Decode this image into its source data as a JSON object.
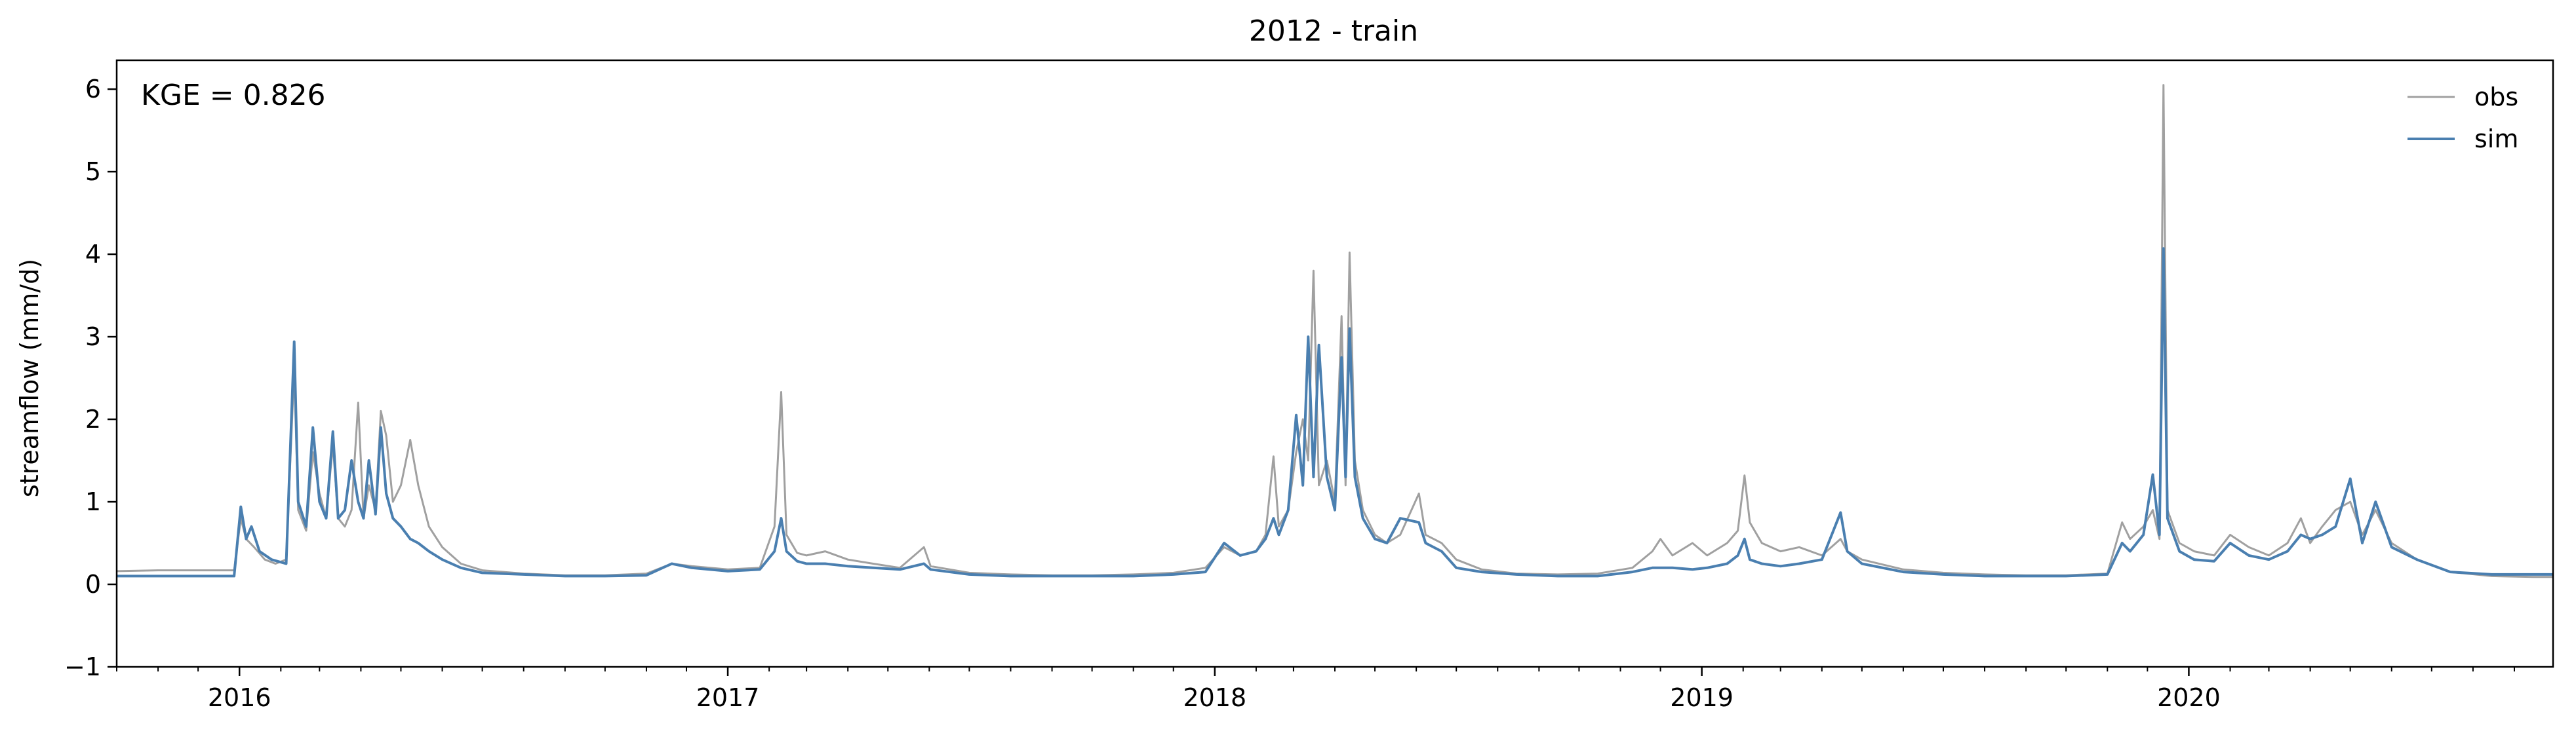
{
  "chart_data": {
    "type": "line",
    "title": "2012 - train",
    "xlabel": "",
    "ylabel": "streamflow (mm/d)",
    "annotation": "KGE = 0.826",
    "x_range": [
      "2015-10-01",
      "2020-09-30"
    ],
    "ylim": [
      -1,
      6.35
    ],
    "y_ticks": [
      -1,
      0,
      1,
      2,
      3,
      4,
      5,
      6
    ],
    "x_ticks": [
      "2016",
      "2017",
      "2018",
      "2019",
      "2020"
    ],
    "grid": false,
    "legend_position": "top-right",
    "series": [
      {
        "name": "obs",
        "color": "#a0a0a0",
        "points": [
          [
            "2015-10-01",
            0.16
          ],
          [
            "2015-11-01",
            0.17
          ],
          [
            "2015-12-01",
            0.17
          ],
          [
            "2015-12-28",
            0.17
          ],
          [
            "2016-01-02",
            0.8
          ],
          [
            "2016-01-06",
            0.55
          ],
          [
            "2016-01-12",
            0.45
          ],
          [
            "2016-01-20",
            0.3
          ],
          [
            "2016-01-28",
            0.25
          ],
          [
            "2016-02-05",
            0.3
          ],
          [
            "2016-02-11",
            2.6
          ],
          [
            "2016-02-14",
            0.9
          ],
          [
            "2016-02-20",
            0.65
          ],
          [
            "2016-02-25",
            1.6
          ],
          [
            "2016-03-01",
            1.1
          ],
          [
            "2016-03-06",
            0.8
          ],
          [
            "2016-03-11",
            1.7
          ],
          [
            "2016-03-15",
            0.8
          ],
          [
            "2016-03-20",
            0.7
          ],
          [
            "2016-03-25",
            0.9
          ],
          [
            "2016-03-30",
            2.2
          ],
          [
            "2016-04-03",
            0.8
          ],
          [
            "2016-04-07",
            1.2
          ],
          [
            "2016-04-12",
            0.9
          ],
          [
            "2016-04-16",
            2.1
          ],
          [
            "2016-04-20",
            1.8
          ],
          [
            "2016-04-25",
            1.0
          ],
          [
            "2016-05-01",
            1.2
          ],
          [
            "2016-05-08",
            1.75
          ],
          [
            "2016-05-14",
            1.2
          ],
          [
            "2016-05-22",
            0.7
          ],
          [
            "2016-06-01",
            0.45
          ],
          [
            "2016-06-15",
            0.25
          ],
          [
            "2016-07-01",
            0.17
          ],
          [
            "2016-08-01",
            0.13
          ],
          [
            "2016-09-01",
            0.11
          ],
          [
            "2016-10-01",
            0.11
          ],
          [
            "2016-11-01",
            0.13
          ],
          [
            "2016-11-20",
            0.25
          ],
          [
            "2016-12-05",
            0.22
          ],
          [
            "2017-01-01",
            0.18
          ],
          [
            "2017-01-25",
            0.2
          ],
          [
            "2017-02-05",
            0.7
          ],
          [
            "2017-02-10",
            2.33
          ],
          [
            "2017-02-14",
            0.6
          ],
          [
            "2017-02-22",
            0.38
          ],
          [
            "2017-03-01",
            0.35
          ],
          [
            "2017-03-15",
            0.4
          ],
          [
            "2017-04-01",
            0.3
          ],
          [
            "2017-04-20",
            0.25
          ],
          [
            "2017-05-10",
            0.2
          ],
          [
            "2017-05-28",
            0.45
          ],
          [
            "2017-06-02",
            0.22
          ],
          [
            "2017-07-01",
            0.14
          ],
          [
            "2017-08-01",
            0.12
          ],
          [
            "2017-09-01",
            0.11
          ],
          [
            "2017-10-01",
            0.11
          ],
          [
            "2017-11-01",
            0.12
          ],
          [
            "2017-12-01",
            0.14
          ],
          [
            "2017-12-25",
            0.2
          ],
          [
            "2018-01-08",
            0.45
          ],
          [
            "2018-01-20",
            0.35
          ],
          [
            "2018-02-01",
            0.4
          ],
          [
            "2018-02-08",
            0.6
          ],
          [
            "2018-02-14",
            1.55
          ],
          [
            "2018-02-18",
            0.7
          ],
          [
            "2018-02-25",
            0.9
          ],
          [
            "2018-03-03",
            1.6
          ],
          [
            "2018-03-08",
            2.0
          ],
          [
            "2018-03-12",
            1.5
          ],
          [
            "2018-03-16",
            3.8
          ],
          [
            "2018-03-20",
            1.2
          ],
          [
            "2018-03-26",
            1.5
          ],
          [
            "2018-04-01",
            1.0
          ],
          [
            "2018-04-06",
            3.25
          ],
          [
            "2018-04-09",
            1.2
          ],
          [
            "2018-04-12",
            4.02
          ],
          [
            "2018-04-16",
            1.5
          ],
          [
            "2018-04-22",
            0.9
          ],
          [
            "2018-05-01",
            0.6
          ],
          [
            "2018-05-10",
            0.5
          ],
          [
            "2018-05-20",
            0.6
          ],
          [
            "2018-06-03",
            1.1
          ],
          [
            "2018-06-08",
            0.6
          ],
          [
            "2018-06-20",
            0.5
          ],
          [
            "2018-07-01",
            0.3
          ],
          [
            "2018-07-20",
            0.18
          ],
          [
            "2018-08-15",
            0.13
          ],
          [
            "2018-09-15",
            0.12
          ],
          [
            "2018-10-15",
            0.13
          ],
          [
            "2018-11-10",
            0.2
          ],
          [
            "2018-11-25",
            0.4
          ],
          [
            "2018-12-01",
            0.55
          ],
          [
            "2018-12-10",
            0.35
          ],
          [
            "2018-12-25",
            0.5
          ],
          [
            "2019-01-05",
            0.35
          ],
          [
            "2019-01-20",
            0.5
          ],
          [
            "2019-01-28",
            0.65
          ],
          [
            "2019-02-02",
            1.32
          ],
          [
            "2019-02-06",
            0.75
          ],
          [
            "2019-02-15",
            0.5
          ],
          [
            "2019-03-01",
            0.4
          ],
          [
            "2019-03-15",
            0.45
          ],
          [
            "2019-04-01",
            0.35
          ],
          [
            "2019-04-15",
            0.55
          ],
          [
            "2019-04-20",
            0.4
          ],
          [
            "2019-05-01",
            0.3
          ],
          [
            "2019-06-01",
            0.18
          ],
          [
            "2019-07-01",
            0.14
          ],
          [
            "2019-08-01",
            0.12
          ],
          [
            "2019-09-01",
            0.11
          ],
          [
            "2019-10-01",
            0.11
          ],
          [
            "2019-11-01",
            0.13
          ],
          [
            "2019-11-12",
            0.75
          ],
          [
            "2019-11-18",
            0.55
          ],
          [
            "2019-11-28",
            0.7
          ],
          [
            "2019-12-05",
            0.9
          ],
          [
            "2019-12-10",
            0.55
          ],
          [
            "2019-12-13",
            6.05
          ],
          [
            "2019-12-16",
            0.9
          ],
          [
            "2019-12-25",
            0.5
          ],
          [
            "2020-01-05",
            0.4
          ],
          [
            "2020-01-20",
            0.35
          ],
          [
            "2020-02-01",
            0.6
          ],
          [
            "2020-02-15",
            0.45
          ],
          [
            "2020-03-01",
            0.35
          ],
          [
            "2020-03-15",
            0.5
          ],
          [
            "2020-03-25",
            0.8
          ],
          [
            "2020-04-01",
            0.5
          ],
          [
            "2020-04-10",
            0.7
          ],
          [
            "2020-04-20",
            0.9
          ],
          [
            "2020-05-01",
            1.0
          ],
          [
            "2020-05-10",
            0.6
          ],
          [
            "2020-05-20",
            0.9
          ],
          [
            "2020-06-01",
            0.5
          ],
          [
            "2020-06-20",
            0.3
          ],
          [
            "2020-07-15",
            0.15
          ],
          [
            "2020-08-15",
            0.1
          ],
          [
            "2020-09-15",
            0.09
          ],
          [
            "2020-09-30",
            0.09
          ]
        ]
      },
      {
        "name": "sim",
        "color": "#4a7fb0",
        "points": [
          [
            "2015-10-01",
            0.1
          ],
          [
            "2015-11-01",
            0.1
          ],
          [
            "2015-12-01",
            0.1
          ],
          [
            "2015-12-28",
            0.1
          ],
          [
            "2016-01-02",
            0.94
          ],
          [
            "2016-01-06",
            0.55
          ],
          [
            "2016-01-10",
            0.7
          ],
          [
            "2016-01-16",
            0.4
          ],
          [
            "2016-01-25",
            0.3
          ],
          [
            "2016-02-05",
            0.25
          ],
          [
            "2016-02-11",
            2.94
          ],
          [
            "2016-02-14",
            1.0
          ],
          [
            "2016-02-20",
            0.7
          ],
          [
            "2016-02-25",
            1.9
          ],
          [
            "2016-03-01",
            1.0
          ],
          [
            "2016-03-06",
            0.8
          ],
          [
            "2016-03-11",
            1.85
          ],
          [
            "2016-03-15",
            0.8
          ],
          [
            "2016-03-20",
            0.9
          ],
          [
            "2016-03-25",
            1.5
          ],
          [
            "2016-03-30",
            1.0
          ],
          [
            "2016-04-03",
            0.8
          ],
          [
            "2016-04-07",
            1.5
          ],
          [
            "2016-04-12",
            0.85
          ],
          [
            "2016-04-16",
            1.9
          ],
          [
            "2016-04-20",
            1.1
          ],
          [
            "2016-04-25",
            0.8
          ],
          [
            "2016-05-01",
            0.7
          ],
          [
            "2016-05-08",
            0.55
          ],
          [
            "2016-05-14",
            0.5
          ],
          [
            "2016-05-22",
            0.4
          ],
          [
            "2016-06-01",
            0.3
          ],
          [
            "2016-06-15",
            0.2
          ],
          [
            "2016-07-01",
            0.14
          ],
          [
            "2016-08-01",
            0.12
          ],
          [
            "2016-09-01",
            0.1
          ],
          [
            "2016-10-01",
            0.1
          ],
          [
            "2016-11-01",
            0.11
          ],
          [
            "2016-11-20",
            0.25
          ],
          [
            "2016-12-05",
            0.2
          ],
          [
            "2017-01-01",
            0.16
          ],
          [
            "2017-01-25",
            0.18
          ],
          [
            "2017-02-05",
            0.4
          ],
          [
            "2017-02-10",
            0.8
          ],
          [
            "2017-02-14",
            0.4
          ],
          [
            "2017-02-22",
            0.28
          ],
          [
            "2017-03-01",
            0.25
          ],
          [
            "2017-03-15",
            0.25
          ],
          [
            "2017-04-01",
            0.22
          ],
          [
            "2017-04-20",
            0.2
          ],
          [
            "2017-05-10",
            0.18
          ],
          [
            "2017-05-28",
            0.25
          ],
          [
            "2017-06-02",
            0.18
          ],
          [
            "2017-07-01",
            0.12
          ],
          [
            "2017-08-01",
            0.1
          ],
          [
            "2017-09-01",
            0.1
          ],
          [
            "2017-10-01",
            0.1
          ],
          [
            "2017-11-01",
            0.1
          ],
          [
            "2017-12-01",
            0.12
          ],
          [
            "2017-12-25",
            0.15
          ],
          [
            "2018-01-08",
            0.5
          ],
          [
            "2018-01-20",
            0.35
          ],
          [
            "2018-02-01",
            0.4
          ],
          [
            "2018-02-08",
            0.55
          ],
          [
            "2018-02-14",
            0.8
          ],
          [
            "2018-02-18",
            0.6
          ],
          [
            "2018-02-25",
            0.9
          ],
          [
            "2018-03-03",
            2.05
          ],
          [
            "2018-03-08",
            1.2
          ],
          [
            "2018-03-12",
            3.0
          ],
          [
            "2018-03-16",
            1.3
          ],
          [
            "2018-03-20",
            2.9
          ],
          [
            "2018-03-26",
            1.3
          ],
          [
            "2018-04-01",
            0.9
          ],
          [
            "2018-04-06",
            2.75
          ],
          [
            "2018-04-09",
            1.3
          ],
          [
            "2018-04-12",
            3.1
          ],
          [
            "2018-04-16",
            1.3
          ],
          [
            "2018-04-22",
            0.8
          ],
          [
            "2018-05-01",
            0.55
          ],
          [
            "2018-05-10",
            0.5
          ],
          [
            "2018-05-20",
            0.8
          ],
          [
            "2018-06-03",
            0.75
          ],
          [
            "2018-06-08",
            0.5
          ],
          [
            "2018-06-20",
            0.4
          ],
          [
            "2018-07-01",
            0.2
          ],
          [
            "2018-07-20",
            0.15
          ],
          [
            "2018-08-15",
            0.12
          ],
          [
            "2018-09-15",
            0.1
          ],
          [
            "2018-10-15",
            0.1
          ],
          [
            "2018-11-10",
            0.15
          ],
          [
            "2018-11-25",
            0.2
          ],
          [
            "2018-12-01",
            0.2
          ],
          [
            "2018-12-10",
            0.2
          ],
          [
            "2018-12-25",
            0.18
          ],
          [
            "2019-01-05",
            0.2
          ],
          [
            "2019-01-20",
            0.25
          ],
          [
            "2019-01-28",
            0.35
          ],
          [
            "2019-02-02",
            0.55
          ],
          [
            "2019-02-06",
            0.3
          ],
          [
            "2019-02-15",
            0.25
          ],
          [
            "2019-03-01",
            0.22
          ],
          [
            "2019-03-15",
            0.25
          ],
          [
            "2019-04-01",
            0.3
          ],
          [
            "2019-04-15",
            0.87
          ],
          [
            "2019-04-20",
            0.4
          ],
          [
            "2019-05-01",
            0.25
          ],
          [
            "2019-06-01",
            0.15
          ],
          [
            "2019-07-01",
            0.12
          ],
          [
            "2019-08-01",
            0.1
          ],
          [
            "2019-09-01",
            0.1
          ],
          [
            "2019-10-01",
            0.1
          ],
          [
            "2019-11-01",
            0.12
          ],
          [
            "2019-11-12",
            0.5
          ],
          [
            "2019-11-18",
            0.4
          ],
          [
            "2019-11-28",
            0.6
          ],
          [
            "2019-12-05",
            1.33
          ],
          [
            "2019-12-10",
            0.6
          ],
          [
            "2019-12-13",
            4.07
          ],
          [
            "2019-12-16",
            0.8
          ],
          [
            "2019-12-25",
            0.4
          ],
          [
            "2020-01-05",
            0.3
          ],
          [
            "2020-01-20",
            0.28
          ],
          [
            "2020-02-01",
            0.5
          ],
          [
            "2020-02-15",
            0.35
          ],
          [
            "2020-03-01",
            0.3
          ],
          [
            "2020-03-15",
            0.4
          ],
          [
            "2020-03-25",
            0.6
          ],
          [
            "2020-04-01",
            0.55
          ],
          [
            "2020-04-10",
            0.6
          ],
          [
            "2020-04-20",
            0.7
          ],
          [
            "2020-05-01",
            1.28
          ],
          [
            "2020-05-10",
            0.5
          ],
          [
            "2020-05-20",
            1.0
          ],
          [
            "2020-06-01",
            0.45
          ],
          [
            "2020-06-20",
            0.3
          ],
          [
            "2020-07-15",
            0.15
          ],
          [
            "2020-08-15",
            0.12
          ],
          [
            "2020-09-15",
            0.12
          ],
          [
            "2020-09-30",
            0.12
          ]
        ]
      }
    ]
  }
}
